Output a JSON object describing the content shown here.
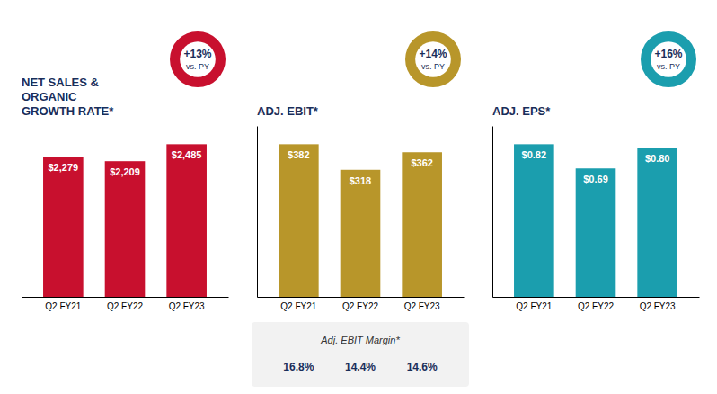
{
  "chart_data": [
    {
      "type": "bar",
      "title": "NET SALES &\nORGANIC\nGROWTH RATE*",
      "categories": [
        "Q2 FY21",
        "Q2 FY22",
        "Q2 FY23"
      ],
      "values": [
        2279,
        2209,
        2485
      ],
      "value_labels": [
        "$2,279",
        "$2,209",
        "$2,485"
      ],
      "data_labels": true,
      "color": "#c8102e",
      "ylim": [
        0,
        2783.2
      ],
      "yticks": [],
      "tick_labels": "x",
      "annotations": [
        "+13%",
        "vs. PY"
      ]
    },
    {
      "type": "bar",
      "title": "ADJ. EBIT*",
      "categories": [
        "Q2 FY21",
        "Q2 FY22",
        "Q2 FY23"
      ],
      "values": [
        382,
        318,
        362
      ],
      "value_labels": [
        "$382",
        "$318",
        "$362"
      ],
      "data_labels": true,
      "color": "#b8962a",
      "ylim": [
        0,
        427.84
      ],
      "yticks": [],
      "tick_labels": "x",
      "annotations": [
        "+14%",
        "vs. PY",
        "Adj. EBIT Margin*",
        "16.8%",
        "14.4%",
        "14.6%"
      ]
    },
    {
      "type": "bar",
      "title": "ADJ. EPS*",
      "categories": [
        "Q2 FY21",
        "Q2 FY22",
        "Q2 FY23"
      ],
      "values": [
        0.82,
        0.69,
        0.8
      ],
      "value_labels": [
        "$0.82",
        "$0.69",
        "$0.80"
      ],
      "data_labels": true,
      "color": "#1b9eae",
      "ylim": [
        0,
        0.9184
      ],
      "yticks": [],
      "tick_labels": "x",
      "annotations": [
        "+16%",
        "vs. PY"
      ]
    }
  ]
}
